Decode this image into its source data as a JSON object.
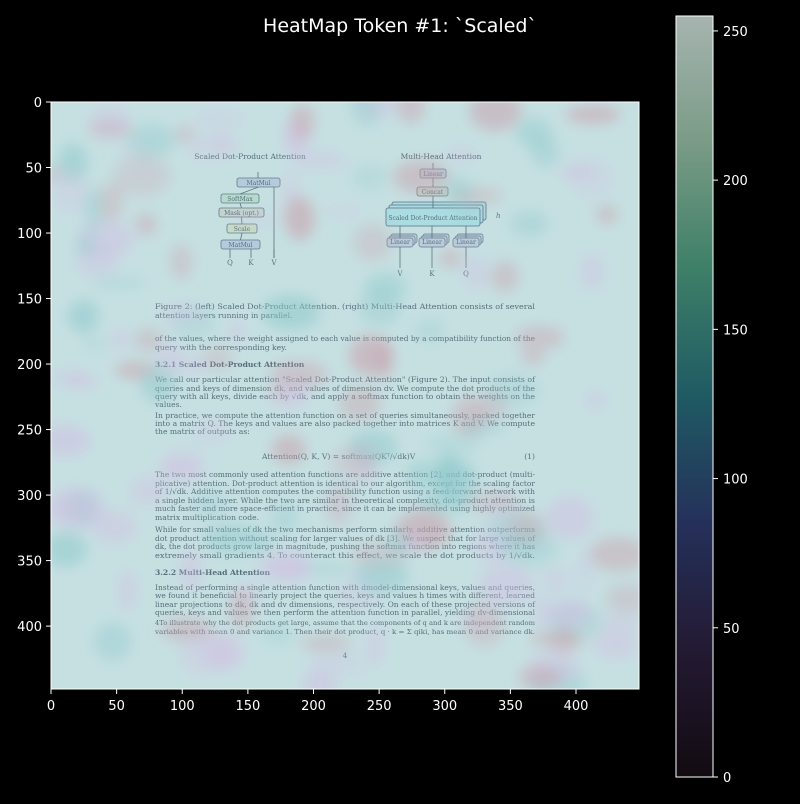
{
  "chart_data": {
    "type": "heatmap",
    "title": "HeatMap Token #1: `Scaled`",
    "x_ticks": [
      0,
      50,
      100,
      150,
      200,
      250,
      300,
      350,
      400
    ],
    "y_ticks": [
      0,
      50,
      100,
      150,
      200,
      250,
      300,
      350,
      400
    ],
    "xlim": [
      0,
      448
    ],
    "ylim": [
      448,
      0
    ],
    "colorbar": {
      "ticks": [
        0,
        50,
        100,
        150,
        200,
        250
      ],
      "range": [
        0,
        255
      ],
      "colormap": "cubehelix-like",
      "stops": [
        "#120b10",
        "#231a33",
        "#25305a",
        "#1f5a63",
        "#3d7f68",
        "#7a9b86",
        "#a6b4b0"
      ]
    },
    "overlay_colors": {
      "base": "#8fc9cc",
      "warm": "#c8a2ac",
      "cool": "#d0c0e2"
    },
    "document": {
      "diagram_left_title": "Scaled Dot-Product Attention",
      "diagram_right_title": "Multi-Head Attention",
      "left_boxes": [
        "MatMul",
        "SoftMax",
        "Mask (opt.)",
        "Scale",
        "MatMul"
      ],
      "left_inputs": [
        "Q",
        "K",
        "V"
      ],
      "right_boxes": [
        "Linear",
        "Concat",
        "Scaled Dot-Product Attention"
      ],
      "right_linears": [
        "Linear",
        "Linear",
        "Linear"
      ],
      "right_inputs": [
        "V",
        "K",
        "Q"
      ],
      "head_label": "h",
      "lines": [
        "Figure 2: (left) Scaled Dot-Product Attention. (right) Multi-Head Attention consists of several",
        "attention layers running in parallel.",
        "of the values, where the weight assigned to each value is computed by a compatibility function of the",
        "query with the corresponding key.",
        "3.2.1    Scaled Dot-Product Attention",
        "We call our particular attention \"Scaled Dot-Product Attention\" (Figure 2). The input consists of",
        "queries and keys of dimension dk, and values of dimension dv. We compute the dot products of the",
        "query with all keys, divide each by √dk, and apply a softmax function to obtain the weights on the",
        "values.",
        "In practice, we compute the attention function on a set of queries simultaneously, packed together",
        "into a matrix Q. The keys and values are also packed together into matrices K and V. We compute",
        "the matrix of outputs as:",
        "Attention(Q, K, V) = softmax(QKᵀ/√dk)V",
        "(1)",
        "The two most commonly used attention functions are additive attention [2], and dot-product (multi-",
        "plicative) attention. Dot-product attention is identical to our algorithm, except for the scaling factor",
        "of 1/√dk. Additive attention computes the compatibility function using a feed-forward network with",
        "a single hidden layer. While the two are similar in theoretical complexity, dot-product attention is",
        "much faster and more space-efficient in practice, since it can be implemented using highly optimized",
        "matrix multiplication code.",
        "While for small values of dk the two mechanisms perform similarly, additive attention outperforms",
        "dot product attention without scaling for larger values of dk [3]. We suspect that for large values of",
        "dk, the dot products grow large in magnitude, pushing the softmax function into regions where it has",
        "extremely small gradients 4. To counteract this effect, we scale the dot products by 1/√dk.",
        "3.2.2    Multi-Head Attention",
        "Instead of performing a single attention function with dmodel-dimensional keys, values and queries,",
        "we found it beneficial to linearly project the queries, keys and values h times with different, learned",
        "linear projections to dk, dk and dv dimensions, respectively. On each of these projected versions of",
        "queries, keys and values we then perform the attention function in parallel, yielding dv-dimensional",
        "4To illustrate why the dot products get large, assume that the components of q and k are independent random",
        "variables with mean 0 and variance 1. Then their dot product, q · k = Σ qiki, has mean 0 and variance dk.",
        "4"
      ]
    }
  }
}
